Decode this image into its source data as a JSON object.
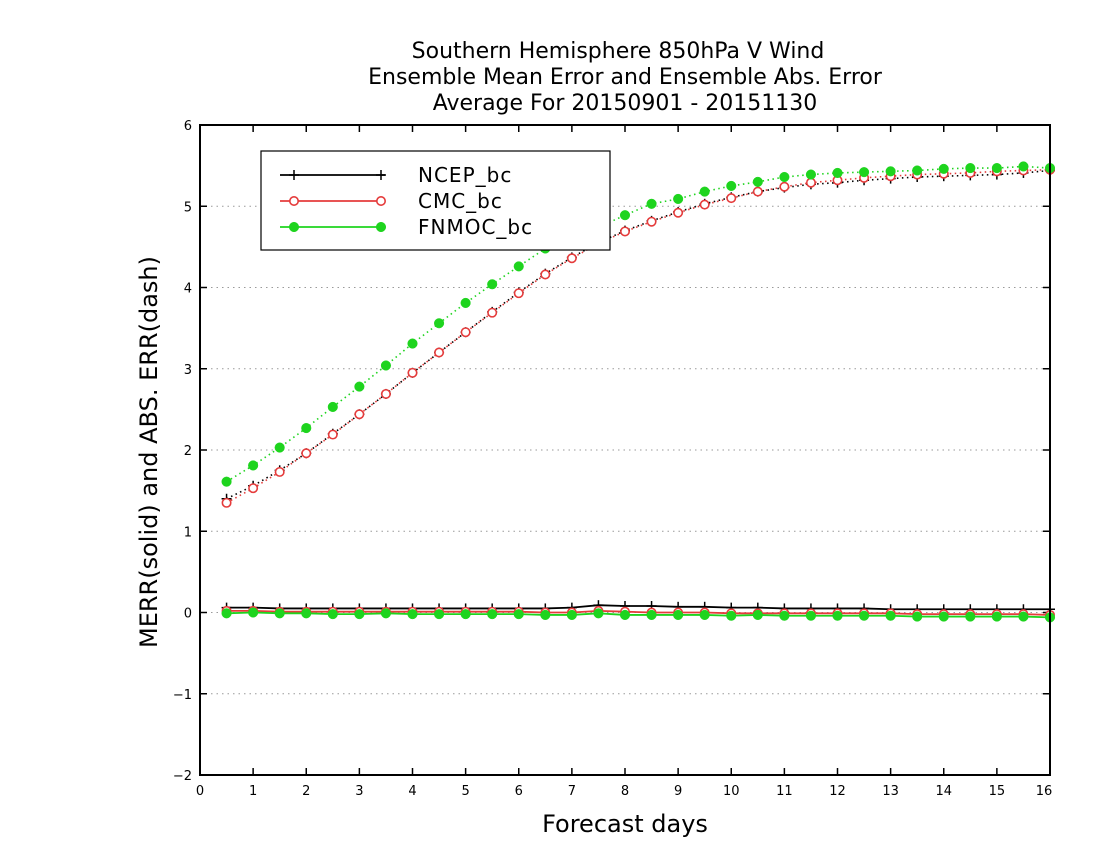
{
  "chart_data": {
    "type": "line",
    "title": "Southern Hemisphere 850hPa V Wind",
    "subtitle": "Ensemble Mean Error and Ensemble Abs. Error",
    "subtitle2": "Average For 20150901 - 20151130",
    "xlabel": "Forecast days",
    "ylabel": "MERR(solid) and ABS. ERR(dash)",
    "xlim": [
      0,
      16
    ],
    "ylim": [
      -2,
      6
    ],
    "xticks": [
      "0",
      "1",
      "2",
      "3",
      "4",
      "5",
      "6",
      "7",
      "8",
      "9",
      "10",
      "11",
      "12",
      "13",
      "14",
      "15",
      "16"
    ],
    "yticks": [
      "−2",
      "−1",
      "0",
      "1",
      "2",
      "3",
      "4",
      "5",
      "6"
    ],
    "grid": "horizontal dotted",
    "legend_position": "top-left",
    "x": [
      0.5,
      1,
      1.5,
      2,
      2.5,
      3,
      3.5,
      4,
      4.5,
      5,
      5.5,
      6,
      6.5,
      7,
      7.5,
      8,
      8.5,
      9,
      9.5,
      10,
      10.5,
      11,
      11.5,
      12,
      12.5,
      13,
      13.5,
      14,
      14.5,
      15,
      15.5,
      16
    ],
    "series": [
      {
        "name": "NCEP_bc",
        "color": "#000000",
        "marker": "plus",
        "abs_err": [
          1.4,
          1.56,
          1.75,
          1.96,
          2.2,
          2.44,
          2.69,
          2.95,
          3.2,
          3.45,
          3.7,
          3.94,
          4.17,
          4.37,
          4.55,
          4.7,
          4.82,
          4.93,
          5.03,
          5.11,
          5.18,
          5.23,
          5.27,
          5.29,
          5.32,
          5.34,
          5.36,
          5.37,
          5.38,
          5.39,
          5.41,
          5.44
        ],
        "mean_err": [
          0.06,
          0.06,
          0.05,
          0.05,
          0.05,
          0.05,
          0.05,
          0.05,
          0.05,
          0.05,
          0.05,
          0.05,
          0.05,
          0.06,
          0.09,
          0.08,
          0.08,
          0.07,
          0.07,
          0.06,
          0.06,
          0.05,
          0.05,
          0.05,
          0.05,
          0.04,
          0.04,
          0.04,
          0.04,
          0.04,
          0.04,
          0.04
        ]
      },
      {
        "name": "CMC_bc",
        "color": "#e53b3b",
        "marker": "open-circle",
        "abs_err": [
          1.35,
          1.53,
          1.73,
          1.96,
          2.19,
          2.44,
          2.69,
          2.95,
          3.2,
          3.45,
          3.69,
          3.93,
          4.16,
          4.36,
          4.54,
          4.69,
          4.81,
          4.92,
          5.02,
          5.1,
          5.18,
          5.24,
          5.29,
          5.32,
          5.35,
          5.37,
          5.39,
          5.4,
          5.41,
          5.43,
          5.44,
          5.45
        ],
        "mean_err": [
          0.02,
          0.02,
          0.01,
          0.01,
          0.01,
          0.01,
          0.01,
          0.01,
          0.01,
          0.01,
          0.01,
          0.01,
          0.0,
          0.0,
          0.02,
          0.01,
          0.0,
          0.0,
          0.0,
          -0.01,
          -0.01,
          -0.01,
          -0.01,
          -0.01,
          -0.01,
          -0.01,
          -0.02,
          -0.02,
          -0.02,
          -0.02,
          -0.02,
          -0.03
        ]
      },
      {
        "name": "FNMOC_bc",
        "color": "#1ed41e",
        "marker": "filled-circle",
        "abs_err": [
          1.61,
          1.81,
          2.03,
          2.27,
          2.53,
          2.78,
          3.04,
          3.31,
          3.56,
          3.81,
          4.04,
          4.26,
          4.48,
          4.68,
          4.74,
          4.89,
          5.03,
          5.09,
          5.18,
          5.25,
          5.3,
          5.36,
          5.39,
          5.41,
          5.42,
          5.43,
          5.44,
          5.46,
          5.47,
          5.47,
          5.49,
          5.47
        ],
        "mean_err": [
          -0.01,
          0.0,
          -0.01,
          -0.01,
          -0.02,
          -0.02,
          -0.01,
          -0.02,
          -0.02,
          -0.02,
          -0.02,
          -0.02,
          -0.03,
          -0.03,
          -0.01,
          -0.03,
          -0.03,
          -0.03,
          -0.03,
          -0.04,
          -0.03,
          -0.04,
          -0.04,
          -0.04,
          -0.04,
          -0.04,
          -0.05,
          -0.05,
          -0.05,
          -0.05,
          -0.05,
          -0.06
        ]
      }
    ]
  }
}
